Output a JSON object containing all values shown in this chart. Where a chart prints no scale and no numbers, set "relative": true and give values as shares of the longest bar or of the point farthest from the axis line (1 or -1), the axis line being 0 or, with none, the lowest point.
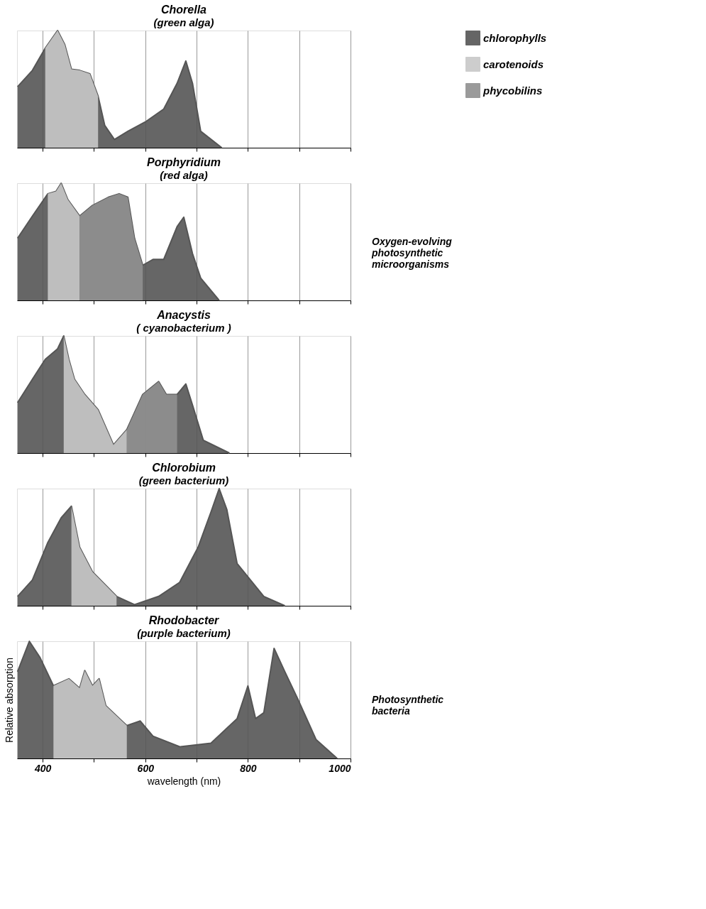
{
  "chart_data": [
    {
      "type": "area",
      "title": "Chorella",
      "subtitle": "(green alga)",
      "relative": true,
      "xlim": [
        350,
        1000
      ],
      "xticks": [
        {
          "value": 400,
          "label": null
        },
        {
          "value": 500,
          "label": null
        },
        {
          "value": 600,
          "label": null
        },
        {
          "value": 700,
          "label": null
        },
        {
          "value": 800,
          "label": null
        },
        {
          "value": 900,
          "label": null
        },
        {
          "value": 1000,
          "label": null
        }
      ],
      "tick_labels": false,
      "grid": "x",
      "legend": "right",
      "series": [
        {
          "name": "chlorophylls",
          "color": "#555555",
          "line_style": "solid",
          "x": [
            351,
            380,
            405,
            429,
            443,
            456,
            472,
            492,
            508,
            521,
            540,
            566,
            600,
            636,
            662,
            679,
            692,
            708,
            749
          ],
          "values": [
            0.52,
            0.66,
            0.85,
            1.0,
            0.88,
            0.67,
            0.66,
            0.63,
            0.44,
            0.19,
            0.07,
            0.14,
            0.22,
            0.33,
            0.55,
            0.74,
            0.55,
            0.14,
            0
          ]
        },
        {
          "name": "carotenoids",
          "color": "#c8c8c8",
          "x": [
            405,
            429,
            443,
            456,
            472,
            492,
            508
          ],
          "values": [
            0.85,
            1.0,
            0.88,
            0.67,
            0.66,
            0.63,
            0.44
          ]
        },
        {
          "name": "phycobilins",
          "color": "#909090"
        }
      ]
    },
    {
      "type": "area",
      "title": "Porphyridium",
      "subtitle": "(red alga)",
      "relative": true,
      "xlim": [
        350,
        1000
      ],
      "xticks": [
        {
          "value": 400,
          "label": null
        },
        {
          "value": 500,
          "label": null
        },
        {
          "value": 600,
          "label": null
        },
        {
          "value": 700,
          "label": null
        },
        {
          "value": 800,
          "label": null
        },
        {
          "value": 900,
          "label": null
        },
        {
          "value": 1000,
          "label": null
        }
      ],
      "tick_labels": false,
      "grid": "x",
      "annotations": [
        "Oxygen-evolving photosynthetic microorganisms"
      ],
      "series": [
        {
          "color": "#555555",
          "line_style": "solid",
          "x": [
            351,
            380,
            410,
            426,
            436,
            449,
            472,
            497,
            528,
            549,
            566,
            579,
            595,
            615,
            636,
            662,
            675,
            692,
            708,
            744
          ],
          "values": [
            0.53,
            0.72,
            0.91,
            0.93,
            1.0,
            0.86,
            0.72,
            0.81,
            0.88,
            0.91,
            0.88,
            0.53,
            0.3,
            0.35,
            0.35,
            0.63,
            0.71,
            0.4,
            0.19,
            0
          ]
        },
        {
          "color": "#c8c8c8",
          "x": [
            410,
            426,
            436,
            449,
            472
          ],
          "values": [
            0.91,
            0.93,
            1.0,
            0.86,
            0.72
          ]
        },
        {
          "color": "#909090",
          "x": [
            472,
            497,
            528,
            549,
            566,
            579,
            595
          ],
          "values": [
            0.72,
            0.81,
            0.88,
            0.91,
            0.88,
            0.53,
            0.3
          ]
        }
      ]
    },
    {
      "type": "area",
      "title": "Anacystis",
      "subtitle": "( cyanobacterium )",
      "relative": true,
      "xlim": [
        350,
        1000
      ],
      "xticks": [
        {
          "value": 400,
          "label": null
        },
        {
          "value": 500,
          "label": null
        },
        {
          "value": 600,
          "label": null
        },
        {
          "value": 700,
          "label": null
        },
        {
          "value": 800,
          "label": null
        },
        {
          "value": 900,
          "label": null
        },
        {
          "value": 1000,
          "label": null
        }
      ],
      "tick_labels": false,
      "grid": "x",
      "series": [
        {
          "color": "#555555",
          "line_style": "solid",
          "x": [
            351,
            380,
            405,
            429,
            441,
            451,
            462,
            482,
            508,
            538,
            564,
            595,
            626,
            641,
            662,
            679,
            692,
            713,
            764
          ],
          "values": [
            0.43,
            0.63,
            0.8,
            0.89,
            1.0,
            0.8,
            0.63,
            0.5,
            0.37,
            0.07,
            0.2,
            0.5,
            0.61,
            0.5,
            0.5,
            0.59,
            0.41,
            0.11,
            0
          ]
        },
        {
          "color": "#c8c8c8",
          "x": [
            441,
            451,
            462,
            482,
            508,
            538,
            564
          ],
          "values": [
            1.0,
            0.8,
            0.63,
            0.5,
            0.37,
            0.07,
            0.2
          ]
        },
        {
          "color": "#909090",
          "x": [
            564,
            595,
            626,
            641,
            662
          ],
          "values": [
            0.2,
            0.5,
            0.61,
            0.5,
            0.5
          ]
        }
      ]
    },
    {
      "type": "area",
      "title": "Chlorobium",
      "subtitle": "(green bacterium)",
      "relative": true,
      "xlim": [
        350,
        1000
      ],
      "xticks": [
        {
          "value": 400,
          "label": null
        },
        {
          "value": 500,
          "label": null
        },
        {
          "value": 600,
          "label": null
        },
        {
          "value": 700,
          "label": null
        },
        {
          "value": 800,
          "label": null
        },
        {
          "value": 900,
          "label": null
        },
        {
          "value": 1000,
          "label": null
        }
      ],
      "tick_labels": false,
      "grid": "x",
      "series": [
        {
          "color": "#555555",
          "line_style": "solid",
          "x": [
            351,
            380,
            410,
            436,
            456,
            472,
            497,
            544,
            579,
            626,
            667,
            703,
            728,
            744,
            759,
            779,
            831,
            872
          ],
          "values": [
            0.08,
            0.22,
            0.54,
            0.75,
            0.85,
            0.5,
            0.29,
            0.08,
            0.01,
            0.08,
            0.2,
            0.5,
            0.8,
            1.0,
            0.82,
            0.36,
            0.08,
            0
          ]
        },
        {
          "color": "#c8c8c8",
          "x": [
            456,
            472,
            497,
            544
          ],
          "values": [
            0.85,
            0.5,
            0.29,
            0.08
          ]
        }
      ]
    },
    {
      "type": "area",
      "title": "Rhodobacter",
      "subtitle": "(purple bacterium)",
      "relative": true,
      "xlabel": "wavelength (nm)",
      "ylabel": "Relative absorption",
      "xlim": [
        350,
        1000
      ],
      "xticks": [
        400,
        {
          "value": 500,
          "label": null
        },
        600,
        {
          "value": 700,
          "label": null
        },
        800,
        {
          "value": 900,
          "label": null
        },
        1000
      ],
      "tick_labels": "x",
      "grid": "x",
      "annotations": [
        "Photosynthetic bacteria"
      ],
      "series": [
        {
          "color": "#555555",
          "line_style": "solid",
          "x": [
            351,
            374,
            395,
            421,
            451,
            472,
            482,
            497,
            510,
            523,
            564,
            590,
            615,
            667,
            728,
            779,
            800,
            815,
            831,
            851,
            872,
            897,
            933,
            974
          ],
          "values": [
            0.74,
            1.0,
            0.86,
            0.62,
            0.68,
            0.6,
            0.75,
            0.62,
            0.68,
            0.45,
            0.28,
            0.32,
            0.19,
            0.1,
            0.13,
            0.34,
            0.62,
            0.34,
            0.39,
            0.94,
            0.74,
            0.51,
            0.16,
            0
          ]
        },
        {
          "color": "#c8c8c8",
          "x": [
            421,
            451,
            472,
            482,
            497,
            510,
            523,
            564
          ],
          "values": [
            0.62,
            0.68,
            0.6,
            0.75,
            0.62,
            0.68,
            0.45,
            0.28
          ]
        }
      ]
    }
  ]
}
